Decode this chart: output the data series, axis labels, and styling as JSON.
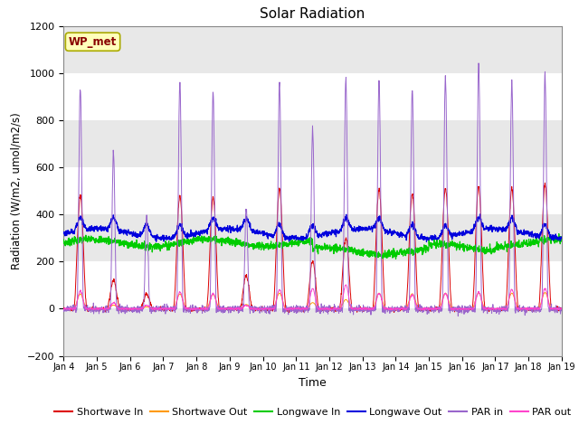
{
  "title": "Solar Radiation",
  "xlabel": "Time",
  "ylabel": "Radiation (W/m2, umol/m2/s)",
  "ylim": [
    -200,
    1200
  ],
  "yticks": [
    -200,
    0,
    200,
    400,
    600,
    800,
    1000,
    1200
  ],
  "station_label": "WP_met",
  "background_color": "#ffffff",
  "fig_color": "#ffffff",
  "band_color": "#e8e8e8",
  "series_colors": {
    "shortwave_in": "#dd0000",
    "shortwave_out": "#ff9900",
    "longwave_in": "#00cc00",
    "longwave_out": "#0000dd",
    "par_in": "#9966cc",
    "par_out": "#ff44cc"
  },
  "legend_labels": [
    "Shortwave In",
    "Shortwave Out",
    "Longwave In",
    "Longwave Out",
    "PAR in",
    "PAR out"
  ],
  "xtick_labels": [
    "Jan 4",
    "Jan 5",
    "Jan 6",
    "Jan 7",
    "Jan 8",
    "Jan 9",
    "Jan 10",
    "Jan 11",
    "Jan 12",
    "Jan 13",
    "Jan 14",
    "Jan 15",
    "Jan 16",
    "Jan 17",
    "Jan 18",
    "Jan 19"
  ],
  "n_days": 15,
  "pts_per_day": 144,
  "sw_peaks": [
    480,
    120,
    60,
    480,
    470,
    140,
    510,
    200,
    300,
    510,
    490,
    510,
    520,
    510,
    530
  ],
  "par_peaks": [
    935,
    660,
    400,
    960,
    920,
    430,
    955,
    760,
    970,
    965,
    930,
    985,
    1040,
    960,
    995
  ],
  "par_out_peaks": [
    75,
    25,
    15,
    70,
    65,
    15,
    80,
    85,
    100,
    65,
    60,
    65,
    70,
    80,
    85
  ],
  "lw_in_base": 280,
  "lw_out_base": 320
}
